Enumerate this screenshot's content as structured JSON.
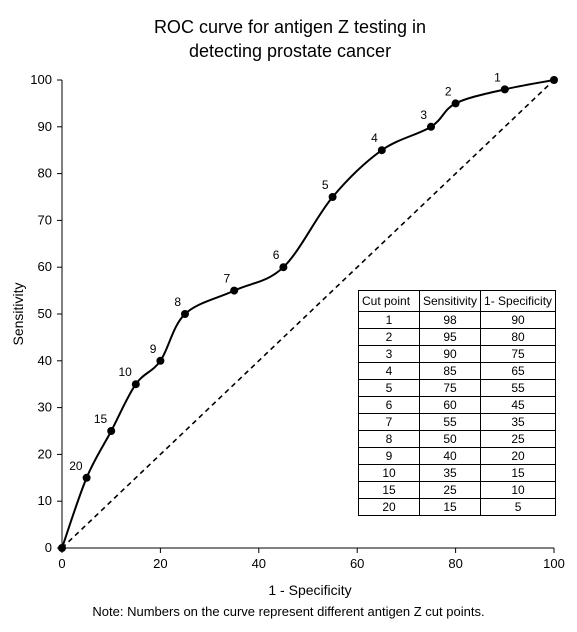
{
  "chart_data": {
    "type": "line",
    "title_lines": [
      "ROC curve for antigen Z testing in",
      "detecting prostate cancer"
    ],
    "xlabel": "1 - Specificity",
    "ylabel": "Sensitivity",
    "xlim": [
      0,
      100
    ],
    "ylim": [
      0,
      100
    ],
    "xticks": [
      0,
      20,
      40,
      60,
      80,
      100
    ],
    "yticks": [
      0,
      10,
      20,
      30,
      40,
      50,
      60,
      70,
      80,
      90,
      100
    ],
    "grid": false,
    "reference_line": {
      "from": [
        0,
        0
      ],
      "to": [
        100,
        100
      ],
      "style": "dashed"
    },
    "curve": [
      {
        "label": "",
        "x": 0,
        "y": 0
      },
      {
        "label": "20",
        "x": 5,
        "y": 15
      },
      {
        "label": "15",
        "x": 10,
        "y": 25
      },
      {
        "label": "10",
        "x": 15,
        "y": 35
      },
      {
        "label": "9",
        "x": 20,
        "y": 40
      },
      {
        "label": "8",
        "x": 25,
        "y": 50
      },
      {
        "label": "7",
        "x": 35,
        "y": 55
      },
      {
        "label": "6",
        "x": 45,
        "y": 60
      },
      {
        "label": "5",
        "x": 55,
        "y": 75
      },
      {
        "label": "4",
        "x": 65,
        "y": 85
      },
      {
        "label": "3",
        "x": 75,
        "y": 90
      },
      {
        "label": "2",
        "x": 80,
        "y": 95
      },
      {
        "label": "1",
        "x": 90,
        "y": 98
      },
      {
        "label": "",
        "x": 100,
        "y": 100
      }
    ],
    "table": {
      "headers": [
        "Cut point",
        "Sensitivity",
        "1- Specificity"
      ],
      "rows": [
        [
          "1",
          "98",
          "90"
        ],
        [
          "2",
          "95",
          "80"
        ],
        [
          "3",
          "90",
          "75"
        ],
        [
          "4",
          "85",
          "65"
        ],
        [
          "5",
          "75",
          "55"
        ],
        [
          "6",
          "60",
          "45"
        ],
        [
          "7",
          "55",
          "35"
        ],
        [
          "8",
          "50",
          "25"
        ],
        [
          "9",
          "40",
          "20"
        ],
        [
          "10",
          "35",
          "15"
        ],
        [
          "15",
          "25",
          "10"
        ],
        [
          "20",
          "15",
          "5"
        ]
      ]
    },
    "note": "Note: Numbers on the curve represent different antigen Z cut points."
  }
}
